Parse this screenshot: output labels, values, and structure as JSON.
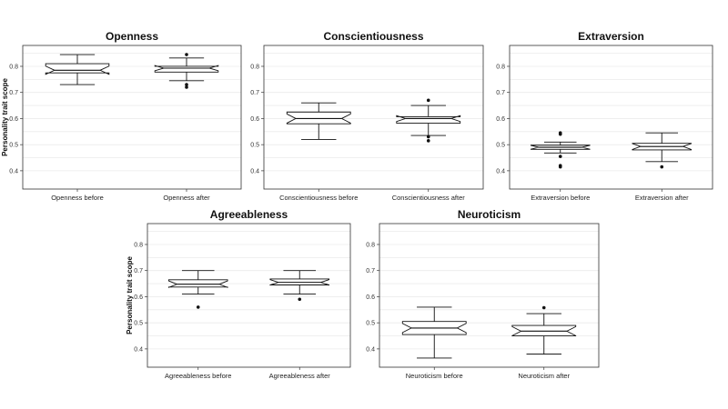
{
  "chart_data": [
    {
      "type": "boxplot",
      "title": "Openness",
      "ylabel": "Personality trait scope",
      "ylim": [
        0.33,
        0.88
      ],
      "yticks": [
        0.4,
        0.5,
        0.6,
        0.7,
        0.8
      ],
      "ytick_labels": [
        "0.4",
        "0.5",
        "0.6",
        "0.7",
        "0.8"
      ],
      "categories": [
        "Openness before",
        "Openness after"
      ],
      "boxes": [
        {
          "whisker_low": 0.73,
          "q1": 0.775,
          "median": 0.785,
          "q3": 0.81,
          "whisker_high": 0.845,
          "outliers": []
        },
        {
          "whisker_low": 0.745,
          "q1": 0.778,
          "median": 0.793,
          "q3": 0.8,
          "whisker_high": 0.832,
          "outliers": [
            0.845,
            0.73,
            0.72
          ]
        }
      ]
    },
    {
      "type": "boxplot",
      "title": "Conscientiousness",
      "ylabel": "",
      "ylim": [
        0.33,
        0.88
      ],
      "yticks": [
        0.4,
        0.5,
        0.6,
        0.7,
        0.8
      ],
      "ytick_labels": [
        "0.4",
        "0.5",
        "0.6",
        "0.7",
        "0.8"
      ],
      "categories": [
        "Conscientiousness before",
        "Conscientiousness after"
      ],
      "boxes": [
        {
          "whisker_low": 0.52,
          "q1": 0.58,
          "median": 0.6,
          "q3": 0.625,
          "whisker_high": 0.66,
          "outliers": []
        },
        {
          "whisker_low": 0.535,
          "q1": 0.582,
          "median": 0.6,
          "q3": 0.607,
          "whisker_high": 0.65,
          "outliers": [
            0.67,
            0.53,
            0.515
          ]
        }
      ]
    },
    {
      "type": "boxplot",
      "title": "Extraversion",
      "ylabel": "",
      "ylim": [
        0.33,
        0.88
      ],
      "yticks": [
        0.4,
        0.5,
        0.6,
        0.7,
        0.8
      ],
      "ytick_labels": [
        "0.4",
        "0.5",
        "0.6",
        "0.7",
        "0.8"
      ],
      "categories": [
        "Extraversion before",
        "Extraversion after"
      ],
      "boxes": [
        {
          "whisker_low": 0.468,
          "q1": 0.482,
          "median": 0.49,
          "q3": 0.498,
          "whisker_high": 0.51,
          "outliers": [
            0.545,
            0.54,
            0.455,
            0.42,
            0.415
          ]
        },
        {
          "whisker_low": 0.435,
          "q1": 0.48,
          "median": 0.493,
          "q3": 0.505,
          "whisker_high": 0.545,
          "outliers": [
            0.415
          ]
        }
      ]
    },
    {
      "type": "boxplot",
      "title": "Agreeableness",
      "ylabel": "Personality trait scope",
      "ylim": [
        0.33,
        0.88
      ],
      "yticks": [
        0.4,
        0.5,
        0.6,
        0.7,
        0.8
      ],
      "ytick_labels": [
        "0.4",
        "0.5",
        "0.6",
        "0.7",
        "0.8"
      ],
      "categories": [
        "Agreeableness before",
        "Agreeableness after"
      ],
      "boxes": [
        {
          "whisker_low": 0.61,
          "q1": 0.637,
          "median": 0.648,
          "q3": 0.665,
          "whisker_high": 0.7,
          "outliers": [
            0.56
          ]
        },
        {
          "whisker_low": 0.61,
          "q1": 0.645,
          "median": 0.655,
          "q3": 0.668,
          "whisker_high": 0.7,
          "outliers": [
            0.59
          ]
        }
      ]
    },
    {
      "type": "boxplot",
      "title": "Neuroticism",
      "ylabel": "",
      "ylim": [
        0.33,
        0.88
      ],
      "yticks": [
        0.4,
        0.5,
        0.6,
        0.7,
        0.8
      ],
      "ytick_labels": [
        "0.4",
        "0.5",
        "0.6",
        "0.7",
        "0.8"
      ],
      "categories": [
        "Neuroticism before",
        "Neuroticism after"
      ],
      "boxes": [
        {
          "whisker_low": 0.365,
          "q1": 0.455,
          "median": 0.48,
          "q3": 0.505,
          "whisker_high": 0.56,
          "outliers": []
        },
        {
          "whisker_low": 0.38,
          "q1": 0.45,
          "median": 0.468,
          "q3": 0.49,
          "whisker_high": 0.535,
          "outliers": [
            0.558
          ]
        }
      ]
    }
  ]
}
